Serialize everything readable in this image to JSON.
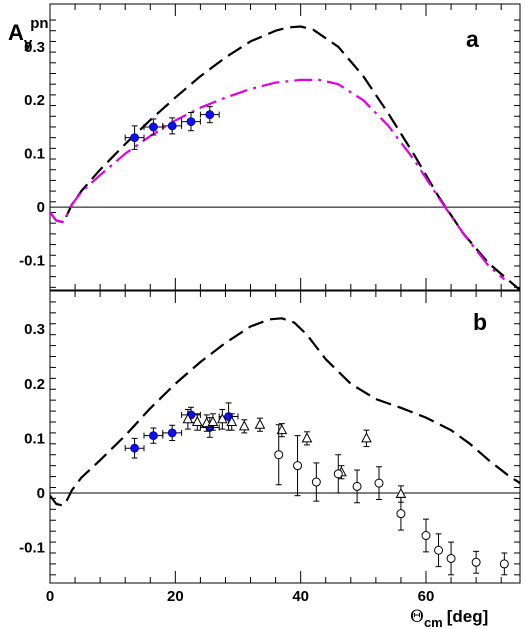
{
  "figure": {
    "y_title": {
      "main": "A",
      "sub": "y",
      "sup": "pn"
    },
    "x_title": {
      "main": "Θ",
      "sub": "cm",
      "unit": "[deg]"
    }
  },
  "chart_data": [
    {
      "type": "line",
      "panel_label": "a",
      "xlim": [
        0,
        75
      ],
      "ylim": [
        -0.155,
        0.38
      ],
      "x_ticks": [
        0,
        20,
        40,
        60
      ],
      "x_tick_labels": [
        "",
        "",
        "",
        ""
      ],
      "y_ticks": [
        -0.1,
        0,
        0.1,
        0.2,
        0.3
      ],
      "y_tick_labels": [
        "-0.1",
        "0",
        "0.1",
        "0.2",
        "0.3"
      ],
      "zero_line": true,
      "grid": false,
      "series": [
        {
          "style": "dashed",
          "color": "#000000",
          "x": [
            0,
            1,
            2,
            2.5,
            3.5,
            5,
            8,
            12,
            16,
            20,
            24,
            28,
            32,
            36,
            38,
            40,
            42,
            46,
            50,
            54,
            58,
            62,
            66,
            70,
            73,
            75
          ],
          "y": [
            -0.01,
            -0.025,
            -0.028,
            -0.02,
            0.005,
            0.03,
            0.07,
            0.118,
            0.163,
            0.205,
            0.245,
            0.28,
            0.31,
            0.33,
            0.336,
            0.338,
            0.332,
            0.3,
            0.245,
            0.175,
            0.1,
            0.02,
            -0.05,
            -0.105,
            -0.135,
            -0.155
          ]
        },
        {
          "style": "dashdot",
          "color": "#e000e0",
          "x": [
            0,
            1,
            2,
            2.5,
            3.5,
            5,
            8,
            12,
            16,
            20,
            24,
            28,
            32,
            36,
            40,
            43,
            46,
            50,
            54,
            58,
            62,
            66,
            70,
            72.5
          ],
          "y": [
            -0.01,
            -0.025,
            -0.028,
            -0.02,
            0.005,
            0.028,
            0.06,
            0.1,
            0.133,
            0.162,
            0.186,
            0.205,
            0.221,
            0.233,
            0.238,
            0.238,
            0.23,
            0.2,
            0.152,
            0.09,
            0.018,
            -0.05,
            -0.11,
            -0.135
          ]
        }
      ],
      "points": [
        {
          "marker": "filled-circle",
          "color": "#1010ee",
          "x": [
            13.5,
            16.5,
            19.5,
            22.5,
            25.5
          ],
          "y": [
            0.13,
            0.15,
            0.152,
            0.16,
            0.173
          ],
          "xerr": [
            1.5,
            1.5,
            1.5,
            1.5,
            1.5
          ],
          "yerr": [
            0.022,
            0.015,
            0.015,
            0.017,
            0.015
          ]
        }
      ]
    },
    {
      "type": "scatter",
      "panel_label": "b",
      "xlim": [
        0,
        75
      ],
      "ylim": [
        -0.165,
        0.37
      ],
      "x_ticks": [
        0,
        20,
        40,
        60
      ],
      "x_tick_labels": [
        "0",
        "20",
        "40",
        "60"
      ],
      "y_ticks": [
        -0.1,
        0,
        0.1,
        0.2,
        0.3
      ],
      "y_tick_labels": [
        "-0.1",
        "0",
        "0.1",
        "0.2",
        "0.3"
      ],
      "zero_line": true,
      "grid": false,
      "series": [
        {
          "style": "dashed",
          "color": "#000000",
          "x": [
            0,
            1,
            2,
            2.5,
            3.5,
            5,
            8,
            12,
            16,
            20,
            24,
            28,
            32,
            35,
            37,
            39,
            41,
            44,
            48,
            52,
            56,
            60,
            64,
            67,
            70,
            73,
            75
          ],
          "y": [
            -0.005,
            -0.02,
            -0.023,
            -0.018,
            0.005,
            0.028,
            0.06,
            0.105,
            0.155,
            0.2,
            0.24,
            0.275,
            0.305,
            0.318,
            0.32,
            0.312,
            0.29,
            0.245,
            0.2,
            0.172,
            0.156,
            0.138,
            0.115,
            0.09,
            0.06,
            0.033,
            0.018
          ]
        }
      ],
      "points": [
        {
          "marker": "filled-circle",
          "color": "#1010ee",
          "x": [
            13.5,
            16.5,
            19.5,
            22.5,
            25.5,
            28.5
          ],
          "y": [
            0.082,
            0.105,
            0.11,
            0.143,
            0.12,
            0.14
          ],
          "xerr": [
            1.5,
            1.5,
            1.5,
            1.5,
            1.5,
            1.5
          ],
          "yerr": [
            0.018,
            0.014,
            0.014,
            0.014,
            0.018,
            0.025
          ]
        },
        {
          "marker": "open-triangle",
          "color": "#000000",
          "x": [
            22,
            23.5,
            25,
            26,
            27.5,
            29,
            31,
            33.5,
            37,
            41,
            46.5,
            50.5,
            56
          ],
          "y": [
            0.135,
            0.13,
            0.128,
            0.13,
            0.135,
            0.13,
            0.122,
            0.125,
            0.115,
            0.1,
            0.038,
            0.1,
            -0.002
          ],
          "yerr": [
            0.018,
            0.015,
            0.015,
            0.015,
            0.018,
            0.015,
            0.012,
            0.012,
            0.012,
            0.012,
            0.012,
            0.015,
            0.015
          ]
        },
        {
          "marker": "open-circle",
          "color": "#000000",
          "x": [
            36.5,
            39.5,
            42.5,
            46,
            49,
            52.5,
            56,
            60,
            62,
            64,
            68,
            72.5
          ],
          "y": [
            0.07,
            0.05,
            0.02,
            0.035,
            0.012,
            0.018,
            -0.038,
            -0.078,
            -0.105,
            -0.12,
            -0.127,
            -0.13
          ],
          "yerr": [
            0.055,
            0.055,
            0.035,
            0.035,
            0.03,
            0.03,
            0.03,
            0.03,
            0.03,
            0.03,
            0.02,
            0.02
          ]
        }
      ]
    }
  ]
}
